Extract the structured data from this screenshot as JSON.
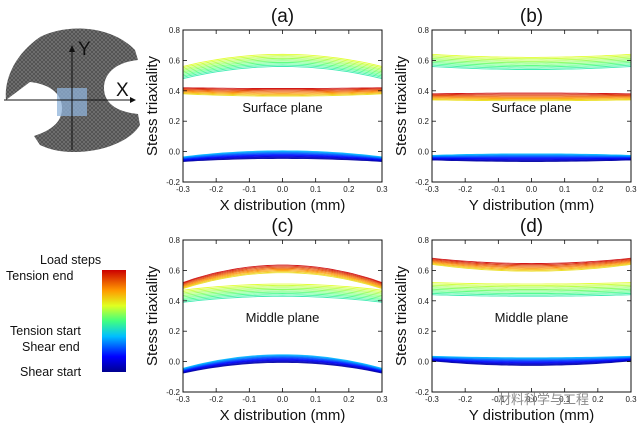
{
  "chart_data": [
    {
      "type": "line",
      "title": "(a)",
      "xlabel": "X distribution (mm)",
      "ylabel": "Stess triaxiality",
      "xlim": [
        -0.3,
        0.3
      ],
      "ylim": [
        -0.2,
        0.8
      ],
      "xticks": [
        "-0.3",
        "-0.2",
        "-0.1",
        "0.0",
        "0.1",
        "0.2",
        "0.3"
      ],
      "yticks": [
        "-0.2",
        "0.0",
        "0.2",
        "0.4",
        "0.6",
        "0.8"
      ],
      "annotation": "Surface plane",
      "series": [
        {
          "group": "tension",
          "edge": 0.52,
          "center": 0.6,
          "count": 10
        },
        {
          "group": "tension",
          "edge": 0.4,
          "center": 0.39,
          "count": 8
        },
        {
          "group": "shear",
          "edge": -0.05,
          "center": -0.02,
          "count": 12
        }
      ]
    },
    {
      "type": "line",
      "title": "(b)",
      "xlabel": "Y distribution (mm)",
      "ylabel": "Stess triaxiality",
      "xlim": [
        -0.3,
        0.3
      ],
      "ylim": [
        -0.2,
        0.8
      ],
      "xticks": [
        "-0.3",
        "-0.2",
        "-0.1",
        "0.0",
        "0.1",
        "0.2",
        "0.3"
      ],
      "yticks": [
        "-0.2",
        "0.0",
        "0.2",
        "0.4",
        "0.6",
        "0.8"
      ],
      "annotation": "Surface plane",
      "series": [
        {
          "group": "tension",
          "edge": 0.6,
          "center": 0.58,
          "count": 10
        },
        {
          "group": "tension",
          "edge": 0.36,
          "center": 0.36,
          "count": 8
        },
        {
          "group": "shear",
          "edge": -0.04,
          "center": -0.04,
          "count": 12
        }
      ]
    },
    {
      "type": "line",
      "title": "(c)",
      "xlabel": "X distribution (mm)",
      "ylabel": "Stess triaxiality",
      "xlim": [
        -0.3,
        0.3
      ],
      "ylim": [
        -0.2,
        0.8
      ],
      "xticks": [
        "-0.3",
        "-0.2",
        "-0.1",
        "0.0",
        "0.1",
        "0.2",
        "0.3"
      ],
      "yticks": [
        "-0.2",
        "0.0",
        "0.2",
        "0.4",
        "0.6",
        "0.8"
      ],
      "annotation": "Middle plane",
      "series": [
        {
          "group": "tension",
          "edge": 0.43,
          "center": 0.47,
          "count": 10
        },
        {
          "group": "tension",
          "edge": 0.5,
          "center": 0.61,
          "count": 8
        },
        {
          "group": "shear",
          "edge": -0.06,
          "center": 0.02,
          "count": 12
        }
      ]
    },
    {
      "type": "line",
      "title": "(d)",
      "xlabel": "Y distribution (mm)",
      "ylabel": "Stess triaxiality",
      "xlim": [
        -0.3,
        0.3
      ],
      "ylim": [
        -0.2,
        0.8
      ],
      "xticks": [
        "-0.3",
        "-0.2",
        "-0.1",
        "0.0",
        "0.1",
        "0.2",
        "0.3"
      ],
      "yticks": [
        "-0.2",
        "0.0",
        "0.2",
        "0.4",
        "0.6",
        "0.8"
      ],
      "annotation": "Middle plane",
      "series": [
        {
          "group": "tension",
          "edge": 0.48,
          "center": 0.47,
          "count": 10
        },
        {
          "group": "tension",
          "edge": 0.66,
          "center": 0.62,
          "count": 8
        },
        {
          "group": "shear",
          "edge": 0.02,
          "center": 0.0,
          "count": 12
        }
      ]
    }
  ],
  "specimen": {
    "x_label": "X",
    "y_label": "Y"
  },
  "legend": {
    "title": "Load steps",
    "labels": [
      "Tension end",
      "Tension start",
      "Shear end",
      "Shear start"
    ]
  },
  "watermark": "材料科学与工程",
  "colors": {
    "red": "#c0392b",
    "blue": "#1f3fbf"
  }
}
